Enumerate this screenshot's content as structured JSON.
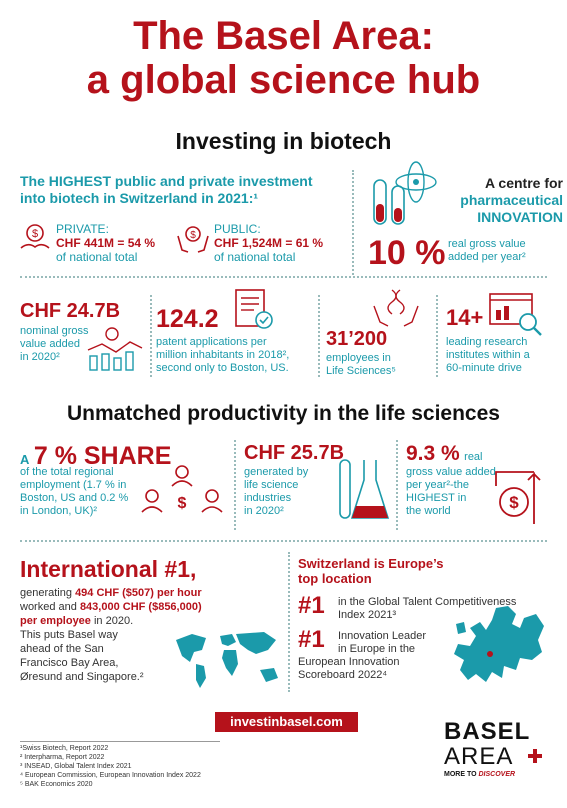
{
  "title": {
    "line1": "The Basel Area:",
    "line2": "a global science hub"
  },
  "section1": {
    "heading": "Investing in biotech",
    "highest": {
      "line1": "The HIGHEST public and private investment",
      "line2": "into biotech in Switzerland in 2021:¹"
    },
    "private": {
      "label": "PRIVATE:",
      "value": "CHF 441M = 54 %",
      "sub": "of national total"
    },
    "public": {
      "label": "PUBLIC:",
      "value": "CHF 1,524M = 61 %",
      "sub": "of national total"
    },
    "centre": {
      "line1": "A centre for",
      "line2": "pharmaceutical",
      "line3": "INNOVATION"
    },
    "ten": {
      "value": "10 %",
      "line1": "real gross value",
      "line2": "added per year²"
    }
  },
  "stats": {
    "gva": {
      "value": "CHF 24.7B",
      "line1": "nominal gross",
      "line2": "value added",
      "line3": "in 2020²"
    },
    "patents": {
      "value": "124.2",
      "line1": "patent applications per",
      "line2": "million inhabitants in 2018²,",
      "line3": "second only to Boston, US."
    },
    "employees": {
      "value": "31’200",
      "line1": "employees in",
      "line2": "Life Sciences⁵"
    },
    "institutes": {
      "value": "14+",
      "line1": "leading research",
      "line2": "institutes within a",
      "line3": "60-minute drive"
    }
  },
  "section2": {
    "heading": "Unmatched productivity in the life sciences",
    "share": {
      "prefix": "A",
      "value": "7 % SHARE",
      "line1": "of the total regional",
      "line2": "employment (1.7 % in",
      "line3": "Boston, US and 0.2 %",
      "line4": "in London, UK)²"
    },
    "generated": {
      "value": "CHF 25.7B",
      "line1": "generated by",
      "line2": "life science",
      "line3": "industries",
      "line4": "in 2020²"
    },
    "growth": {
      "value": "9.3 %",
      "word": "real",
      "line1": "gross value added",
      "line2": "per year²-the",
      "line3": "HIGHEST in",
      "line4": "the world"
    }
  },
  "international": {
    "heading": "International #1,",
    "line1a": "generating",
    "line1b": "494 CHF ($507) per hour",
    "line2a": "worked and",
    "line2b": "843,000 CHF ($856,000)",
    "line3a": "per employee",
    "line3b": "in 2020.",
    "line4": "This puts Basel way",
    "line5": "ahead of the San",
    "line6": "Francisco Bay Area,",
    "line7": "Øresund and Singapore.²"
  },
  "europe": {
    "heading1": "Switzerland is Europe’s",
    "heading2": "top location",
    "rank1": {
      "num": "#1",
      "line1": "in the Global Talent Competitiveness",
      "line2": "Index 2021³"
    },
    "rank2": {
      "num": "#1",
      "line1": "Innovation Leader",
      "line2": "in Europe in the",
      "line3": "European Innovation",
      "line4": "Scoreboard 2022⁴"
    }
  },
  "link": "investinbasel.com",
  "footnotes": [
    "¹Swiss Biotech, Report 2022",
    "² Interpharma, Report 2022",
    "³ INSEAD, Global Talent Index 2021",
    "⁴ European Commission, European Innovation Index 2022",
    "⁵ BAK Economics 2020"
  ],
  "logo": {
    "line1": "BASEL",
    "line2": "AREA",
    "tag_a": "MORE TO",
    "tag_b": "DISCOVER"
  },
  "colors": {
    "accent": "#b5121b",
    "teal": "#1b9aaa"
  }
}
